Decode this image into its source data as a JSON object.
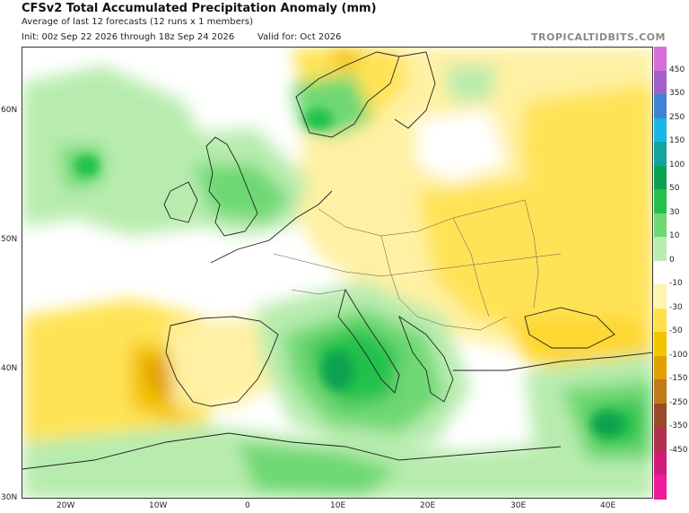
{
  "header": {
    "title": "CFSv2 Total Accumulated Precipitation Anomaly (mm)",
    "subtitle": "Average of last 12 forecasts (12 runs x 1 members)",
    "init": "Init: 00z Sep 22 2026 through 18z Sep 24 2026",
    "valid": "Valid for: Oct 2026"
  },
  "watermark": "TROPICALTIDBITS.COM",
  "map": {
    "lat_labels": [
      "60N",
      "50N",
      "40N",
      "30N"
    ],
    "lon_labels": [
      "20W",
      "10W",
      "0",
      "10E",
      "20E",
      "30E",
      "40E"
    ],
    "extent": {
      "lon_min": -25,
      "lon_max": 45,
      "lat_min": 30,
      "lat_max": 65
    }
  },
  "colorbar": {
    "labels": [
      "450",
      "350",
      "250",
      "150",
      "100",
      "50",
      "30",
      "10",
      "0",
      "-10",
      "-30",
      "-50",
      "-100",
      "-150",
      "-250",
      "-350",
      "-450"
    ],
    "colors": [
      "#d86ed8",
      "#a060c8",
      "#3f84d4",
      "#1ab6e8",
      "#12a4a0",
      "#0aa250",
      "#23c14c",
      "#6ed873",
      "#b8ecae",
      "#ffffff",
      "#fff3b0",
      "#ffe04a",
      "#f3c400",
      "#e2a000",
      "#c07a18",
      "#9a4a26",
      "#b03050",
      "#d01c78",
      "#f01a9a"
    ]
  }
}
